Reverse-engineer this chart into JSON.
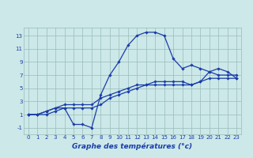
{
  "xlabel": "Graphe des températures (°c)",
  "background_color": "#cce8e8",
  "line_color": "#1a3caa",
  "grid_color": "#99bbbb",
  "x_ticks": [
    0,
    1,
    2,
    3,
    4,
    5,
    6,
    7,
    8,
    9,
    10,
    11,
    12,
    13,
    14,
    15,
    16,
    17,
    18,
    19,
    20,
    21,
    22,
    23
  ],
  "y_ticks": [
    -1,
    1,
    3,
    5,
    7,
    9,
    11,
    13
  ],
  "ylim": [
    -2.0,
    14.2
  ],
  "xlim": [
    -0.5,
    23.5
  ],
  "curve1_x": [
    0,
    1,
    2,
    3,
    4,
    5,
    6,
    7,
    8,
    9,
    10,
    11,
    12,
    13,
    14,
    15,
    16,
    17,
    18,
    19,
    20,
    21,
    22,
    23
  ],
  "curve1_y": [
    1.0,
    1.0,
    1.0,
    1.5,
    2.0,
    -0.5,
    -0.5,
    -1.0,
    4.0,
    7.0,
    9.0,
    11.5,
    13.0,
    13.5,
    13.5,
    13.0,
    9.5,
    8.0,
    8.5,
    8.0,
    7.5,
    7.0,
    7.0,
    7.0
  ],
  "curve2_x": [
    0,
    1,
    2,
    3,
    4,
    5,
    6,
    7,
    8,
    9,
    10,
    11,
    12,
    13,
    14,
    15,
    16,
    17,
    18,
    19,
    20,
    21,
    22,
    23
  ],
  "curve2_y": [
    1.0,
    1.0,
    1.5,
    2.0,
    2.5,
    2.5,
    2.5,
    2.5,
    3.5,
    4.0,
    4.5,
    5.0,
    5.5,
    5.5,
    5.5,
    5.5,
    5.5,
    5.5,
    5.5,
    6.0,
    6.5,
    6.5,
    6.5,
    6.5
  ],
  "curve3_x": [
    0,
    1,
    2,
    3,
    4,
    5,
    6,
    7,
    8,
    9,
    10,
    11,
    12,
    13,
    14,
    15,
    16,
    17,
    18,
    19,
    20,
    21,
    22,
    23
  ],
  "curve3_y": [
    1.0,
    1.0,
    1.5,
    2.0,
    2.0,
    2.0,
    2.0,
    2.0,
    2.5,
    3.5,
    4.0,
    4.5,
    5.0,
    5.5,
    6.0,
    6.0,
    6.0,
    6.0,
    5.5,
    6.0,
    7.5,
    8.0,
    7.5,
    6.5
  ],
  "label_fontsize": 5.0,
  "xlabel_fontsize": 6.5,
  "marker_size": 1.8,
  "line_width": 0.9
}
